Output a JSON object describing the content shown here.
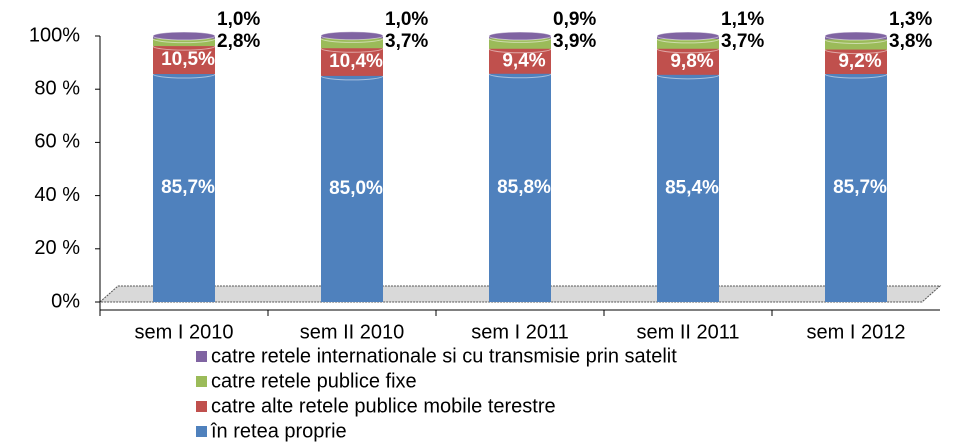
{
  "chart_data": {
    "type": "stacked_bar",
    "categories": [
      "sem I 2010",
      "sem II 2010",
      "sem I 2011",
      "sem II 2011",
      "sem I 2012"
    ],
    "series": [
      {
        "name": "în retea proprie",
        "color": "#4f81bd",
        "values": [
          85.7,
          85.0,
          85.8,
          85.4,
          85.7
        ],
        "value_labels": [
          "85,7%",
          "85,0%",
          "85,8%",
          "85,4%",
          "85,7%"
        ]
      },
      {
        "name": "catre alte retele publice mobile terestre",
        "color": "#c0504d",
        "values": [
          10.5,
          10.4,
          9.4,
          9.8,
          9.2
        ],
        "value_labels": [
          "10,5%",
          "10,4%",
          "9,4%",
          "9,8%",
          "9,2%"
        ]
      },
      {
        "name": "catre retele publice fixe",
        "color": "#9bbb59",
        "values": [
          2.8,
          3.7,
          3.9,
          3.7,
          3.8
        ],
        "value_labels": [
          "2,8%",
          "3,7%",
          "3,9%",
          "3,7%",
          "3,8%"
        ]
      },
      {
        "name": "catre retele internationale si cu transmisie prin satelit",
        "color": "#8064a2",
        "values": [
          1.0,
          1.0,
          0.9,
          1.1,
          1.3
        ],
        "value_labels": [
          "1,0%",
          "1,0%",
          "0,9%",
          "1,1%",
          "1,3%"
        ]
      }
    ],
    "ylim": [
      0,
      100
    ],
    "yticks": [
      {
        "value": 0,
        "label": "0%"
      },
      {
        "value": 20,
        "label": "20 %"
      },
      {
        "value": 40,
        "label": "40 %"
      },
      {
        "value": 60,
        "label": "60 %"
      },
      {
        "value": 80,
        "label": "80 %"
      },
      {
        "value": 100,
        "label": "100%"
      }
    ]
  }
}
